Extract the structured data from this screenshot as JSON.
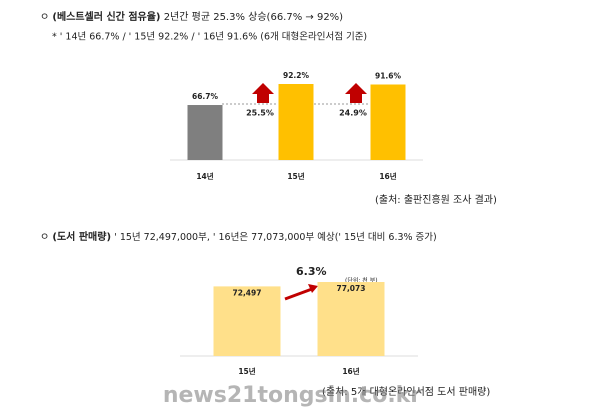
{
  "sections": [
    {
      "bullet": "ㅇ",
      "label": "(베스트셀러 신간 점유율)",
      "text": "2년간 평균 25.3% 상승(66.7% → 92%)",
      "note": "* ' 14년 66.7% / ' 15년 92.2% / ' 16년 91.6% (6개 대형온라인서점 기준)",
      "source": "(출처: 출판진흥원 조사 결과)"
    },
    {
      "bullet": "ㅇ",
      "label": "(도서 판매량)",
      "text": "' 15년 72,497,000부, ' 16년은 77,073,000부 예상(' 15년 대비 6.3% 증가)",
      "source": "(출처: 5개 대형온라인서점 도서 판매량)"
    }
  ],
  "watermark": "news21tongsin.co.kr",
  "chart_data": [
    {
      "type": "bar",
      "categories": [
        "14년",
        "15년",
        "16년"
      ],
      "values": [
        66.7,
        92.2,
        91.6
      ],
      "value_labels": [
        "66.7%",
        "92.2%",
        "91.6%"
      ],
      "colors": [
        "#7f7f7f",
        "#ffc000",
        "#ffc000"
      ],
      "annotations": [
        "25.5%",
        "24.9%"
      ]
    },
    {
      "type": "bar",
      "categories": [
        "15년",
        "16년"
      ],
      "values": [
        72497,
        77073
      ],
      "value_labels": [
        "72,497",
        "77,073"
      ],
      "colors": [
        "#ffe08a",
        "#ffe08a"
      ],
      "annotations": [
        "6.3%"
      ],
      "unit": "(단위: 천 부)"
    }
  ]
}
